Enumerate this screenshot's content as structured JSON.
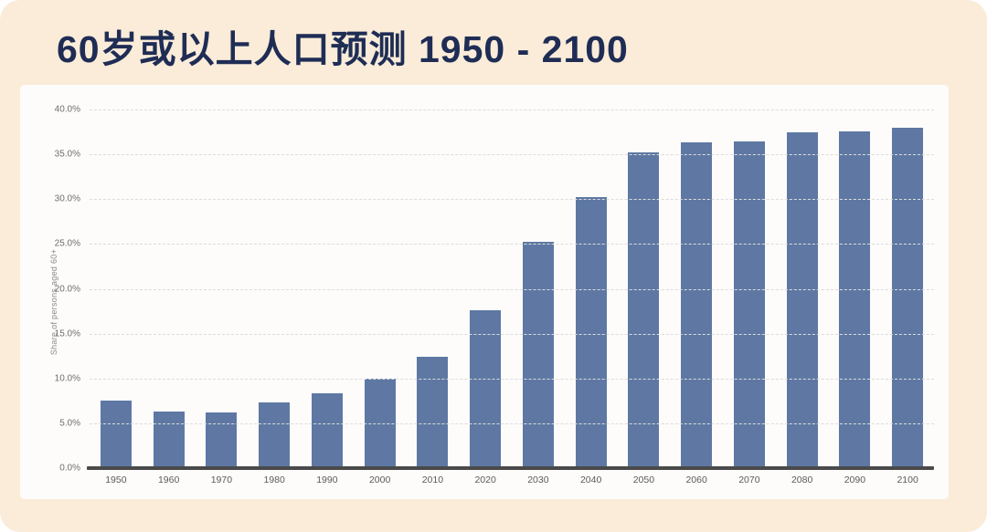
{
  "header": {
    "title": "60岁或以上人口预测 1950 - 2100"
  },
  "chart_data": {
    "type": "bar",
    "title": "60岁或以上人口预测 1950 - 2100",
    "categories": [
      "1950",
      "1960",
      "1970",
      "1980",
      "1990",
      "2000",
      "2010",
      "2020",
      "2030",
      "2040",
      "2050",
      "2060",
      "2070",
      "2080",
      "2090",
      "2100"
    ],
    "values": [
      7.5,
      6.3,
      6.2,
      7.3,
      8.3,
      10.0,
      12.4,
      17.6,
      25.2,
      30.2,
      35.2,
      36.3,
      36.4,
      37.5,
      37.6,
      38.0
    ],
    "xlabel": "",
    "ylabel": "Share of persons aged 60+",
    "ylim": [
      0,
      40
    ],
    "yticks": [
      {
        "value": 40,
        "label": "40.0%"
      },
      {
        "value": 35,
        "label": "35.0%"
      },
      {
        "value": 30,
        "label": "30.0%"
      },
      {
        "value": 25,
        "label": "25.0%"
      },
      {
        "value": 20,
        "label": "20.0%"
      },
      {
        "value": 15,
        "label": "15.0%"
      },
      {
        "value": 10,
        "label": "10.0%"
      },
      {
        "value": 5,
        "label": "5.0%"
      },
      {
        "value": 0,
        "label": "0.0%"
      }
    ],
    "grid": "horizontal-dashed",
    "legend": "none",
    "unit": "%"
  },
  "colors": {
    "background_peach": "#faecd9",
    "card_background": "#fdfcfb",
    "title_navy": "#1f2d55",
    "bar_blue": "#5e78a3",
    "axis_gray": "#4a4a4a",
    "grid_gray": "#dcdcdc",
    "tick_gray": "#6e6e6e"
  }
}
